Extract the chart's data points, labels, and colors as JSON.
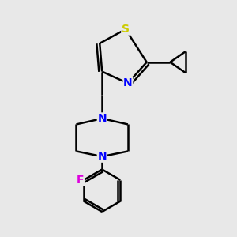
{
  "background_color": "#e8e8e8",
  "bond_color": "#000000",
  "bond_width": 1.8,
  "atom_colors": {
    "S": "#cccc00",
    "N": "#0000ff",
    "F": "#dd00dd",
    "C": "#000000"
  },
  "font_size": 10,
  "fig_size": [
    3.0,
    3.0
  ],
  "dpi": 100
}
